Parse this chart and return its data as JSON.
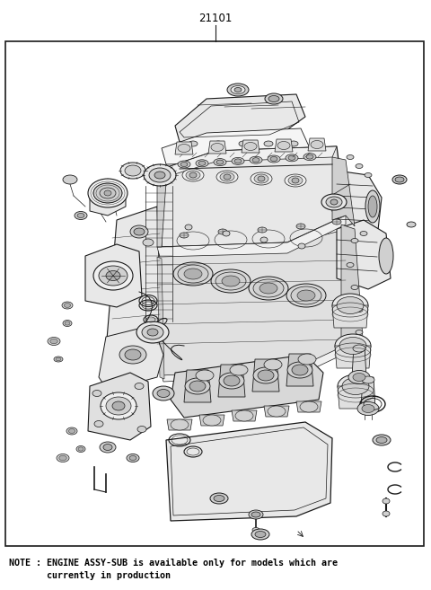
{
  "title": "21101",
  "note_line1": "NOTE : ENGINE ASSY-SUB is available only for models which are",
  "note_line2": "       currently in production",
  "bg_color": "#ffffff",
  "line_color": "#1a1a1a",
  "text_color": "#000000",
  "title_fontsize": 8.5,
  "note_fontsize": 7.2,
  "fig_width": 4.8,
  "fig_height": 6.57,
  "dpi": 100,
  "border": [
    6,
    46,
    472,
    608
  ]
}
